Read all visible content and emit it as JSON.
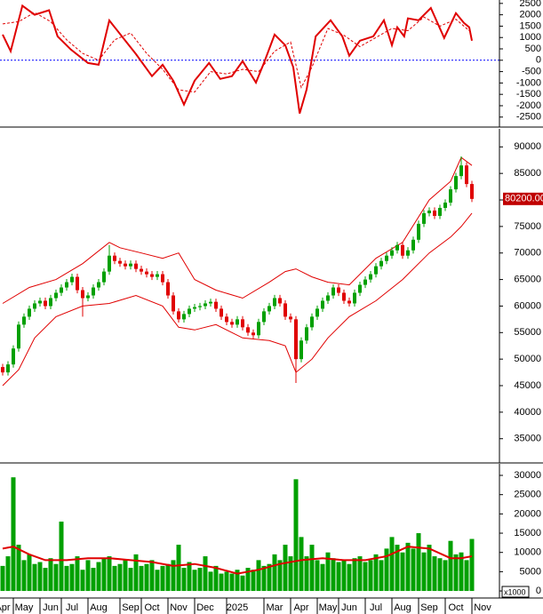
{
  "chart_data": [
    {
      "type": "line",
      "xlim": [
        -0.5,
        93
      ],
      "ylim": [
        -2900,
        2650
      ],
      "yticks": [
        2500,
        2000,
        1500,
        1000,
        500,
        0,
        -500,
        -1000,
        -1500,
        -2000,
        -2500
      ],
      "zero_line_color": "#0000ff",
      "series": [
        {
          "color": "#e00000",
          "dashed": false,
          "x": [
            0,
            1.5,
            3.7,
            6,
            8.7,
            10.3,
            12.8,
            16,
            18,
            20,
            23,
            25,
            28,
            30,
            32,
            34,
            36,
            38.7,
            40.8,
            43,
            45,
            47.5,
            49,
            51,
            53,
            54.5,
            55.7,
            57,
            58.7,
            61.5,
            63.7,
            65,
            67,
            69.5,
            71.5,
            73,
            74,
            75.3,
            76,
            78,
            80.3,
            82.8,
            85,
            86.5,
            87.5,
            88
          ],
          "values": [
            1130,
            400,
            2400,
            2000,
            2200,
            1050,
            470,
            -120,
            -200,
            1750,
            860,
            270,
            -700,
            -200,
            -900,
            -1950,
            -900,
            -120,
            -820,
            -700,
            -40,
            -980,
            -120,
            1130,
            660,
            -310,
            -2340,
            -1290,
            1050,
            1760,
            1050,
            200,
            860,
            1050,
            1760,
            660,
            1450,
            1050,
            1840,
            1760,
            2300,
            980,
            2070,
            1640,
            1450,
            860
          ]
        },
        {
          "color": "#e00000",
          "dashed": true,
          "x": [
            0,
            3,
            6,
            9,
            12,
            15,
            18,
            21,
            24,
            27,
            30,
            33,
            36,
            39,
            42,
            45,
            48,
            51,
            54,
            56,
            58,
            61,
            64,
            67,
            70,
            73,
            76,
            79,
            82,
            85,
            88
          ],
          "values": [
            1600,
            1700,
            2100,
            1700,
            900,
            300,
            0,
            900,
            1200,
            300,
            -400,
            -1300,
            -1400,
            -500,
            -600,
            -400,
            -500,
            400,
            800,
            -1200,
            -300,
            1400,
            1100,
            600,
            1000,
            1400,
            1300,
            1900,
            1500,
            1800,
            1200
          ]
        }
      ]
    },
    {
      "type": "candlestick",
      "xlim": [
        -0.5,
        93
      ],
      "ylim": [
        30600,
        93400
      ],
      "yticks": [
        90000,
        85000,
        80000,
        75000,
        70000,
        65000,
        60000,
        55000,
        50000,
        45000,
        40000,
        35000
      ],
      "up_color": "#00a000",
      "down_color": "#e00000",
      "last_label": "80200.00",
      "open": [
        48500,
        47500,
        49000,
        52000,
        56500,
        58000,
        59500,
        60500,
        61000,
        60000,
        61500,
        62500,
        63500,
        64500,
        65500,
        63000,
        61500,
        62000,
        63500,
        64500,
        66500,
        69500,
        68500,
        68000,
        67500,
        68000,
        67000,
        66500,
        66000,
        65500,
        66000,
        64500,
        62000,
        59000,
        57500,
        58500,
        59500,
        59800,
        60000,
        60500,
        60800,
        59500,
        58000,
        57000,
        56500,
        57500,
        56000,
        55000,
        54500,
        57000,
        59000,
        60000,
        61500,
        60500,
        58000,
        57500,
        50000,
        53500,
        56000,
        58000,
        59500,
        61000,
        62000,
        63500,
        62500,
        61000,
        60500,
        62500,
        64000,
        65000,
        66000,
        67500,
        68500,
        69500,
        70500,
        71500,
        69500,
        70500,
        72500,
        75500,
        77500,
        78000,
        77000,
        78500,
        79500,
        82000,
        84500,
        86500,
        83000
      ],
      "high": [
        49100,
        49600,
        52600,
        57100,
        58600,
        60100,
        61100,
        61600,
        61600,
        62100,
        63100,
        64100,
        65100,
        66100,
        66100,
        63600,
        62600,
        64100,
        65100,
        67100,
        71500,
        70100,
        69100,
        68600,
        68600,
        68600,
        67600,
        67100,
        66600,
        66600,
        66600,
        65100,
        62600,
        59600,
        59100,
        60100,
        60400,
        60600,
        61100,
        61400,
        61400,
        60100,
        58600,
        57600,
        58100,
        58100,
        56600,
        55600,
        57600,
        59600,
        60600,
        62100,
        62100,
        61100,
        58600,
        58100,
        54100,
        56600,
        58600,
        60100,
        61600,
        62600,
        64100,
        64100,
        63100,
        61600,
        63100,
        64600,
        65600,
        66600,
        68100,
        69100,
        70100,
        71100,
        72100,
        72100,
        71100,
        73100,
        76100,
        78100,
        78600,
        78600,
        79100,
        80100,
        82600,
        85100,
        88200,
        87100,
        83600
      ],
      "low": [
        46900,
        46900,
        48400,
        51400,
        55900,
        57400,
        58900,
        59900,
        59400,
        59400,
        60900,
        61900,
        62900,
        63900,
        62400,
        58000,
        60900,
        61400,
        62900,
        63900,
        65900,
        67900,
        67400,
        66900,
        66900,
        66400,
        65900,
        65400,
        64900,
        64900,
        63900,
        61400,
        58400,
        56900,
        56900,
        57900,
        58900,
        59200,
        59400,
        59900,
        58900,
        57400,
        56400,
        55900,
        55900,
        55400,
        54400,
        53900,
        53900,
        56400,
        58400,
        59400,
        59900,
        57400,
        56900,
        45500,
        49400,
        52900,
        55400,
        57400,
        58900,
        60400,
        61400,
        61900,
        60400,
        59900,
        59900,
        61900,
        63400,
        64400,
        65400,
        66900,
        67900,
        68900,
        69900,
        68900,
        68900,
        69900,
        71900,
        74900,
        76900,
        76400,
        76400,
        77900,
        78900,
        81400,
        83900,
        82400,
        79600
      ],
      "close": [
        47500,
        49000,
        52000,
        56500,
        58000,
        59500,
        60500,
        61000,
        60000,
        61500,
        62500,
        63500,
        64500,
        65500,
        63000,
        61500,
        62000,
        63500,
        64500,
        66500,
        69500,
        68500,
        68000,
        67500,
        68000,
        67000,
        66500,
        66000,
        65500,
        66000,
        64500,
        62000,
        59000,
        57500,
        58500,
        59500,
        59800,
        60000,
        60500,
        60800,
        59500,
        58000,
        57000,
        56500,
        57500,
        56000,
        55000,
        54500,
        57000,
        59000,
        60000,
        61500,
        60500,
        58000,
        57500,
        50000,
        53500,
        56000,
        58000,
        59500,
        61000,
        62000,
        63500,
        62500,
        61000,
        60500,
        62500,
        64000,
        65000,
        66000,
        67500,
        68500,
        69500,
        70500,
        71500,
        69500,
        70500,
        72500,
        75500,
        77500,
        78000,
        77000,
        78500,
        79500,
        82000,
        84500,
        86500,
        83000,
        80200
      ],
      "bands": [
        {
          "color": "#e00000",
          "x": [
            0,
            5,
            10,
            15,
            20,
            22,
            26,
            30,
            33,
            36,
            40,
            45,
            50,
            53,
            55,
            58,
            61,
            65,
            70,
            75,
            80,
            84,
            86,
            88
          ],
          "values": [
            60500,
            63500,
            65000,
            68000,
            72000,
            71000,
            70000,
            69000,
            70000,
            65000,
            63000,
            61500,
            64500,
            66500,
            67000,
            65500,
            64500,
            64000,
            69000,
            72000,
            80000,
            83500,
            88000,
            86500
          ]
        },
        {
          "color": "#e00000",
          "x": [
            0,
            3,
            6,
            10,
            15,
            20,
            25,
            30,
            33,
            36,
            40,
            45,
            50,
            53,
            55,
            58,
            61,
            65,
            70,
            75,
            80,
            84,
            86,
            88
          ],
          "values": [
            45000,
            48000,
            54000,
            58000,
            60000,
            60500,
            62000,
            60000,
            56000,
            55500,
            56500,
            54000,
            53500,
            52500,
            47500,
            50000,
            54000,
            58000,
            61000,
            65000,
            70000,
            73000,
            75000,
            77500
          ]
        }
      ]
    },
    {
      "type": "bar",
      "xlim": [
        -0.5,
        93
      ],
      "ylim": [
        -1600,
        33000
      ],
      "yticks": [
        30000,
        25000,
        20000,
        15000,
        10000,
        5000,
        0
      ],
      "color": "#00a000",
      "unit_label": "x1000",
      "values": [
        6500,
        9000,
        29500,
        12000,
        8000,
        9500,
        7000,
        7500,
        6000,
        8500,
        7000,
        18000,
        6500,
        7000,
        9000,
        5500,
        8000,
        6000,
        7500,
        8500,
        9000,
        6500,
        7000,
        8000,
        6000,
        9500,
        6500,
        7000,
        8000,
        5500,
        6500,
        7000,
        8000,
        12000,
        6000,
        7500,
        5500,
        6000,
        9000,
        5000,
        6500,
        4500,
        5000,
        4500,
        5500,
        4000,
        6000,
        5500,
        8000,
        6500,
        7000,
        9500,
        8000,
        12000,
        9000,
        29000,
        14000,
        9000,
        12000,
        8000,
        7000,
        10000,
        8500,
        7500,
        8000,
        7000,
        8500,
        9000,
        7500,
        8000,
        9500,
        8000,
        11000,
        14000,
        12000,
        10000,
        12500,
        11000,
        15000,
        10000,
        12000,
        9000,
        8500,
        8000,
        13000,
        9500,
        10000,
        8000,
        13500
      ],
      "series": [
        {
          "color": "#e00000",
          "x": [
            0,
            2,
            5,
            8,
            12,
            16,
            20,
            24,
            28,
            32,
            36,
            40,
            44,
            48,
            52,
            56,
            60,
            64,
            68,
            72,
            76,
            80,
            84,
            86,
            88
          ],
          "values": [
            11000,
            11500,
            9500,
            8000,
            8000,
            8500,
            8500,
            8000,
            7500,
            6500,
            7000,
            6000,
            4500,
            5500,
            7000,
            8000,
            8500,
            8000,
            8000,
            9000,
            11500,
            11000,
            8500,
            8500,
            9000
          ]
        }
      ],
      "xticks": [
        {
          "value": 0,
          "label": "Apr"
        },
        {
          "value": 4,
          "label": "May"
        },
        {
          "value": 9,
          "label": "Jun"
        },
        {
          "value": 13,
          "label": "Jul"
        },
        {
          "value": 18,
          "label": "Aug"
        },
        {
          "value": 24,
          "label": "Sep"
        },
        {
          "value": 28,
          "label": "Oct"
        },
        {
          "value": 33,
          "label": "Nov"
        },
        {
          "value": 38,
          "label": "Dec"
        },
        {
          "value": 44,
          "label": "2025"
        },
        {
          "value": 51,
          "label": "Mar"
        },
        {
          "value": 56,
          "label": "Apr"
        },
        {
          "value": 61,
          "label": "May"
        },
        {
          "value": 65,
          "label": "Jun"
        },
        {
          "value": 70,
          "label": "Jul"
        },
        {
          "value": 75,
          "label": "Aug"
        },
        {
          "value": 80,
          "label": "Sep"
        },
        {
          "value": 85,
          "label": "Oct"
        },
        {
          "value": 90,
          "label": "Nov"
        }
      ]
    }
  ]
}
